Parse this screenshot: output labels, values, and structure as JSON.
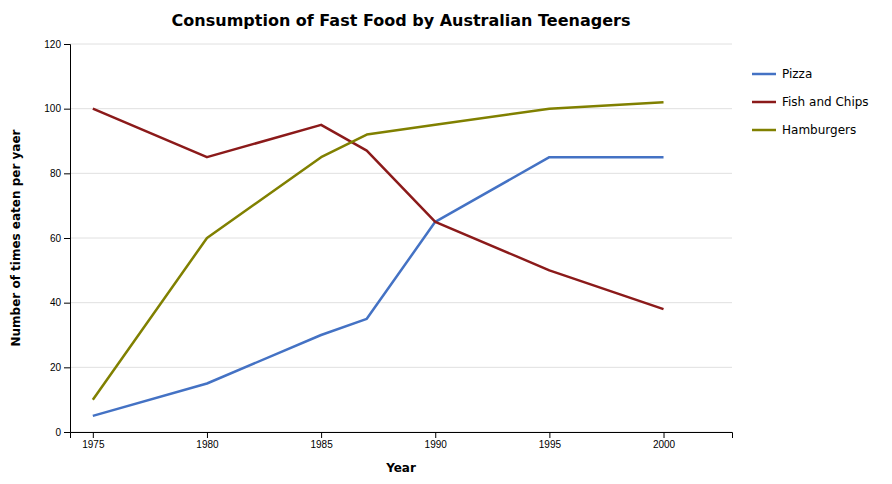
{
  "chart_data": {
    "type": "line",
    "title": "Consumption of Fast Food by Australian Teenagers",
    "x_label": "Year",
    "y_label": "Number of times eaten per yaer",
    "x": [
      1975,
      1980,
      1985,
      1987,
      1990,
      1995,
      2000
    ],
    "series": [
      {
        "name": "Pizza",
        "color": "#4472C4",
        "values": [
          5,
          15,
          30,
          35,
          65,
          85,
          85
        ]
      },
      {
        "name": "Fish and Chips",
        "color": "#8B1A1A",
        "values": [
          100,
          85,
          95,
          87,
          65,
          50,
          38
        ]
      },
      {
        "name": "Hamburgers",
        "color": "#808000",
        "values": [
          10,
          60,
          85,
          92,
          95,
          100,
          102
        ]
      }
    ],
    "xlim": [
      1974,
      2003
    ],
    "xticks": [
      1975,
      1980,
      1985,
      1990,
      1995,
      2000
    ],
    "ylim": [
      0,
      120
    ],
    "yticks": [
      0,
      20,
      40,
      60,
      80,
      100,
      120
    ],
    "grid": true,
    "legend": "right"
  }
}
